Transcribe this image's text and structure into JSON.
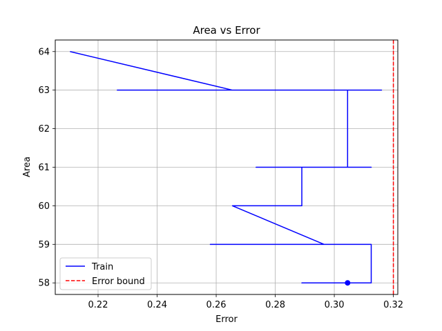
{
  "chart_data": {
    "type": "line",
    "title": "Area vs Error",
    "xlabel": "Error",
    "ylabel": "Area",
    "xlim": [
      0.2055,
      0.3215
    ],
    "ylim": [
      57.7,
      64.3
    ],
    "xticks": [
      0.22,
      0.24,
      0.26,
      0.28,
      0.3,
      0.32
    ],
    "xtick_labels": [
      "0.22",
      "0.24",
      "0.26",
      "0.28",
      "0.30",
      "0.32"
    ],
    "yticks": [
      58,
      59,
      60,
      61,
      62,
      63,
      64
    ],
    "ytick_labels": [
      "58",
      "59",
      "60",
      "61",
      "62",
      "63",
      "64"
    ],
    "grid": true,
    "legend_position": "lower-left",
    "series": [
      {
        "name": "Train",
        "color": "#0000ff",
        "linestyle": "solid",
        "points": [
          [
            0.2105,
            64
          ],
          [
            0.2655,
            63
          ],
          [
            0.2265,
            63
          ],
          [
            0.316,
            63
          ],
          [
            0.3045,
            63
          ],
          [
            0.3045,
            61
          ],
          [
            0.2735,
            61
          ],
          [
            0.3125,
            61
          ],
          [
            0.289,
            61
          ],
          [
            0.289,
            60
          ],
          [
            0.2655,
            60
          ],
          [
            0.2965,
            59
          ],
          [
            0.258,
            59
          ],
          [
            0.3125,
            59
          ],
          [
            0.3125,
            58
          ],
          [
            0.289,
            58
          ],
          [
            0.3045,
            58
          ]
        ],
        "marker_point": [
          0.3045,
          58
        ]
      }
    ],
    "vlines": [
      {
        "name": "Error bound",
        "x": 0.32,
        "color": "#ff0000",
        "linestyle": "dashed"
      }
    ]
  }
}
